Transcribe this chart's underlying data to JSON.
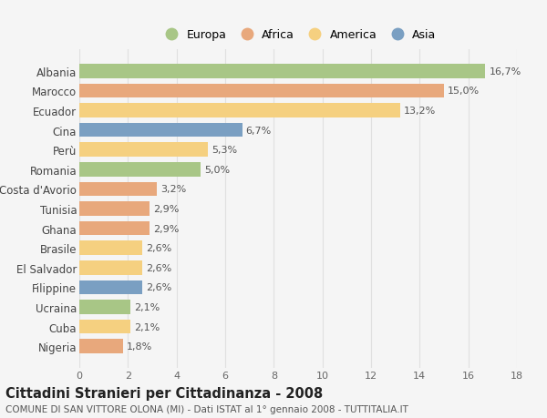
{
  "countries": [
    "Nigeria",
    "Cuba",
    "Ucraina",
    "Filippine",
    "El Salvador",
    "Brasile",
    "Ghana",
    "Tunisia",
    "Costa d'Avorio",
    "Romania",
    "Perù",
    "Cina",
    "Ecuador",
    "Marocco",
    "Albania"
  ],
  "values": [
    1.8,
    2.1,
    2.1,
    2.6,
    2.6,
    2.6,
    2.9,
    2.9,
    3.2,
    5.0,
    5.3,
    6.7,
    13.2,
    15.0,
    16.7
  ],
  "labels": [
    "1,8%",
    "2,1%",
    "2,1%",
    "2,6%",
    "2,6%",
    "2,6%",
    "2,9%",
    "2,9%",
    "3,2%",
    "5,0%",
    "5,3%",
    "6,7%",
    "13,2%",
    "15,0%",
    "16,7%"
  ],
  "continents": [
    "Africa",
    "America",
    "Europa",
    "Asia",
    "America",
    "America",
    "Africa",
    "Africa",
    "Africa",
    "Europa",
    "America",
    "Asia",
    "America",
    "Africa",
    "Europa"
  ],
  "colors": {
    "Europa": "#a8c686",
    "Africa": "#e8a87c",
    "America": "#f5d080",
    "Asia": "#7a9fc2"
  },
  "legend_labels": [
    "Europa",
    "Africa",
    "America",
    "Asia"
  ],
  "legend_colors": [
    "#a8c686",
    "#e8a87c",
    "#f5d080",
    "#7a9fc2"
  ],
  "title": "Cittadini Stranieri per Cittadinanza - 2008",
  "subtitle": "COMUNE DI SAN VITTORE OLONA (MI) - Dati ISTAT al 1° gennaio 2008 - TUTTITALIA.IT",
  "xlim": [
    0,
    18
  ],
  "xticks": [
    0,
    2,
    4,
    6,
    8,
    10,
    12,
    14,
    16,
    18
  ],
  "background_color": "#f5f5f5",
  "grid_color": "#e0e0e0",
  "bar_height": 0.72,
  "label_fontsize": 8.0,
  "tick_fontsize": 8.0,
  "ytick_fontsize": 8.5,
  "title_fontsize": 10.5,
  "subtitle_fontsize": 7.5
}
